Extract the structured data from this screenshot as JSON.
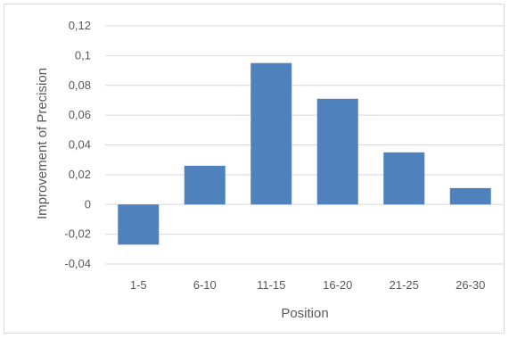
{
  "chart_data": {
    "type": "bar",
    "categories": [
      "1-5",
      "6-10",
      "11-15",
      "16-20",
      "21-25",
      "26-30"
    ],
    "values": [
      -0.027,
      0.026,
      0.095,
      0.071,
      0.035,
      0.011
    ],
    "ylim": [
      -0.04,
      0.12
    ],
    "yticks": [
      -0.04,
      -0.02,
      0,
      0.02,
      0.04,
      0.06,
      0.08,
      0.1,
      0.12
    ],
    "ytick_labels": [
      "-0,04",
      "-0,02",
      "0",
      "0,02",
      "0,04",
      "0,06",
      "0,08",
      "0,1",
      "0,12"
    ],
    "xlabel": "Position",
    "ylabel": "Improvement of Precision",
    "title": "",
    "grid": true,
    "bar_color": "#4f81bd",
    "grid_color": "#d9d9d9"
  }
}
